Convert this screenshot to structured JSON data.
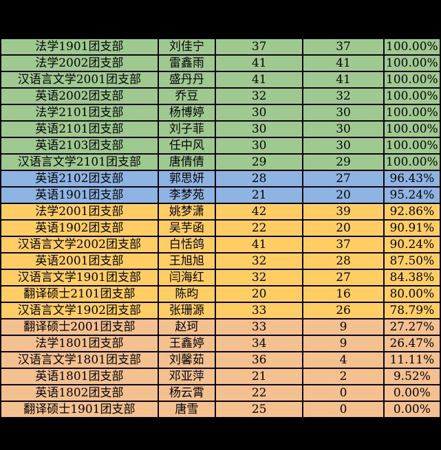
{
  "colors": {
    "green": "#9fca8f",
    "blue": "#8db4e2",
    "yellow": "#ffce63",
    "orange": "#f4c08e",
    "grid": "#000000",
    "background": "#000000",
    "text": "#000000"
  },
  "table": {
    "rows": [
      {
        "branch": "法学1901团支部",
        "name": "刘佳宁",
        "total": "37",
        "completed": "37",
        "percent": "100.00%",
        "color": "green"
      },
      {
        "branch": "法学2002团支部",
        "name": "雷鑫雨",
        "total": "41",
        "completed": "41",
        "percent": "100.00%",
        "color": "green"
      },
      {
        "branch": "汉语言文学2001团支部",
        "name": "盛丹丹",
        "total": "41",
        "completed": "41",
        "percent": "100.00%",
        "color": "green"
      },
      {
        "branch": "英语2002团支部",
        "name": "乔豆",
        "total": "32",
        "completed": "32",
        "percent": "100.00%",
        "color": "green"
      },
      {
        "branch": "法学2101团支部",
        "name": "杨博婷",
        "total": "30",
        "completed": "30",
        "percent": "100.00%",
        "color": "green"
      },
      {
        "branch": "英语2101团支部",
        "name": "刘子菲",
        "total": "30",
        "completed": "30",
        "percent": "100.00%",
        "color": "green"
      },
      {
        "branch": "英语2103团支部",
        "name": "任中风",
        "total": "30",
        "completed": "30",
        "percent": "100.00%",
        "color": "green"
      },
      {
        "branch": "汉语言文学2101团支部",
        "name": "唐倩倩",
        "total": "29",
        "completed": "29",
        "percent": "100.00%",
        "color": "green"
      },
      {
        "branch": "英语2102团支部",
        "name": "郭思妍",
        "total": "28",
        "completed": "27",
        "percent": "96.43%",
        "color": "blue"
      },
      {
        "branch": "英语1901团支部",
        "name": "李梦苑",
        "total": "21",
        "completed": "20",
        "percent": "95.24%",
        "color": "blue"
      },
      {
        "branch": "法学2001团支部",
        "name": "姚梦潇",
        "total": "42",
        "completed": "39",
        "percent": "92.86%",
        "color": "yellow"
      },
      {
        "branch": "英语1902团支部",
        "name": "吴芋函",
        "total": "22",
        "completed": "20",
        "percent": "90.91%",
        "color": "yellow"
      },
      {
        "branch": "汉语言文学2002团支部",
        "name": "白恬鸽",
        "total": "41",
        "completed": "37",
        "percent": "90.24%",
        "color": "yellow"
      },
      {
        "branch": "英语2001团支部",
        "name": "王旭旭",
        "total": "32",
        "completed": "28",
        "percent": "87.50%",
        "color": "yellow"
      },
      {
        "branch": "汉语言文学1901团支部",
        "name": "闫海红",
        "total": "32",
        "completed": "27",
        "percent": "84.38%",
        "color": "yellow"
      },
      {
        "branch": "翻译硕士2101团支部",
        "name": "陈昀",
        "total": "20",
        "completed": "16",
        "percent": "80.00%",
        "color": "yellow"
      },
      {
        "branch": "汉语言文学1902团支部",
        "name": "张珊源",
        "total": "33",
        "completed": "26",
        "percent": "78.79%",
        "color": "yellow"
      },
      {
        "branch": "翻译硕士2001团支部",
        "name": "赵珂",
        "total": "33",
        "completed": "9",
        "percent": "27.27%",
        "color": "orange"
      },
      {
        "branch": "法学1801团支部",
        "name": "王鑫婷",
        "total": "34",
        "completed": "9",
        "percent": "26.47%",
        "color": "orange"
      },
      {
        "branch": "汉语言文学1801团支部",
        "name": "刘馨茹",
        "total": "36",
        "completed": "4",
        "percent": "11.11%",
        "color": "orange"
      },
      {
        "branch": "英语1801团支部",
        "name": "邓亚萍",
        "total": "21",
        "completed": "2",
        "percent": "9.52%",
        "color": "orange"
      },
      {
        "branch": "英语1802团支部",
        "name": "杨云霄",
        "total": "22",
        "completed": "0",
        "percent": "0.00%",
        "color": "orange"
      },
      {
        "branch": "翻译硕士1901团支部",
        "name": "唐雪",
        "total": "25",
        "completed": "0",
        "percent": "0.00%",
        "color": "orange"
      }
    ]
  }
}
